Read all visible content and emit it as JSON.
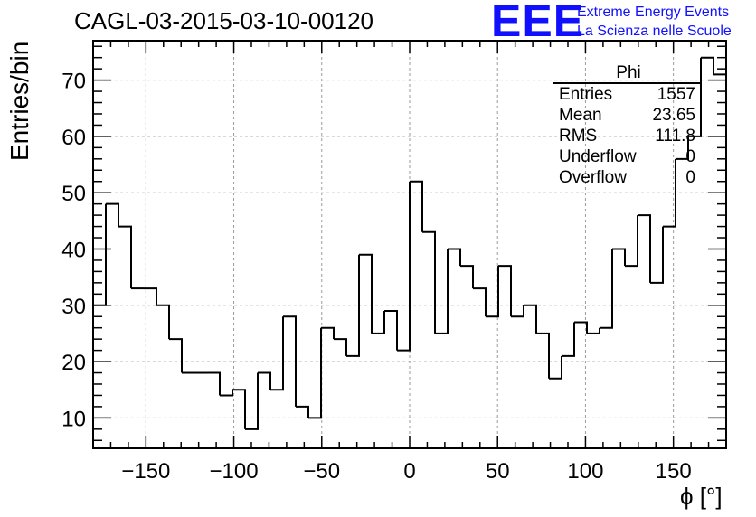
{
  "header": {
    "title": "CAGL-03-2015-03-10-00120",
    "logo_mark": "EEE",
    "logo_line1": "Extreme Energy Events",
    "logo_line2": "La Scienza nelle Scuole"
  },
  "stats": {
    "name": "Phi",
    "rows": [
      {
        "label": "Entries",
        "value": "1557"
      },
      {
        "label": "Mean",
        "value": "23.65"
      },
      {
        "label": "RMS",
        "value": "111.8"
      },
      {
        "label": "Underflow",
        "value": "0"
      },
      {
        "label": "Overflow",
        "value": "0"
      }
    ]
  },
  "chart_data": {
    "type": "histogram",
    "title": "CAGL-03-2015-03-10-00120",
    "xlabel": "ϕ [°]",
    "ylabel": "Entries/bin",
    "xlim": [
      -180,
      180
    ],
    "ylim": [
      4.6,
      77
    ],
    "grid": true,
    "line_color": "#000000",
    "bin_width": 7.2,
    "bin_edges_start": -180,
    "values": [
      30,
      48,
      44,
      33,
      33,
      30,
      24,
      18,
      18,
      18,
      14,
      15,
      8,
      18,
      15,
      28,
      12,
      10,
      26,
      24,
      21,
      39,
      25,
      29,
      22,
      52,
      43,
      25,
      40,
      37,
      33,
      28,
      37,
      28,
      30,
      25,
      17,
      21,
      27,
      25,
      26,
      40,
      37,
      46,
      34,
      44,
      56,
      60,
      74,
      71
    ],
    "x_ticks": [
      -150,
      -100,
      -50,
      0,
      50,
      100,
      150
    ],
    "x_tick_labels": [
      "−150",
      "−100",
      "−50",
      "0",
      "50",
      "100",
      "150"
    ],
    "y_ticks": [
      10,
      20,
      30,
      40,
      50,
      60,
      70
    ],
    "y_tick_labels": [
      "10",
      "20",
      "30",
      "40",
      "50",
      "60",
      "70"
    ]
  }
}
